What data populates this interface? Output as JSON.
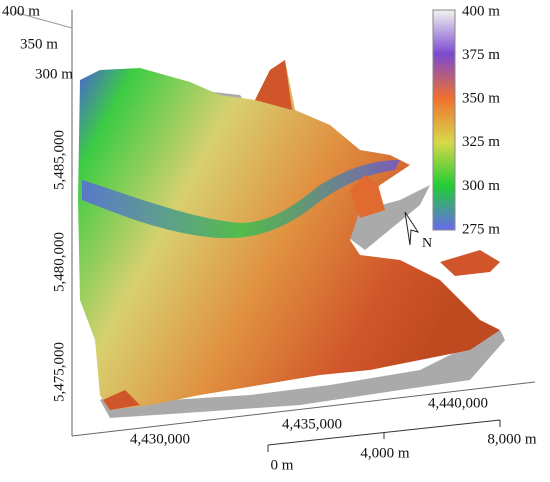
{
  "axes": {
    "z_labels": [
      "400 m",
      "350 m",
      "300 m"
    ],
    "y_labels": [
      "5,485,000",
      "5,480,000",
      "5,475,000"
    ],
    "x_labels": [
      "4,430,000",
      "4,435,000",
      "4,440,000"
    ]
  },
  "colorbar": {
    "labels": [
      "400 m",
      "375 m",
      "350 m",
      "325 m",
      "300 m",
      "275 m"
    ]
  },
  "scale_bar": {
    "labels": [
      "0 m",
      "4,000 m",
      "8,000 m"
    ]
  },
  "north_arrow": {
    "label": "N"
  }
}
